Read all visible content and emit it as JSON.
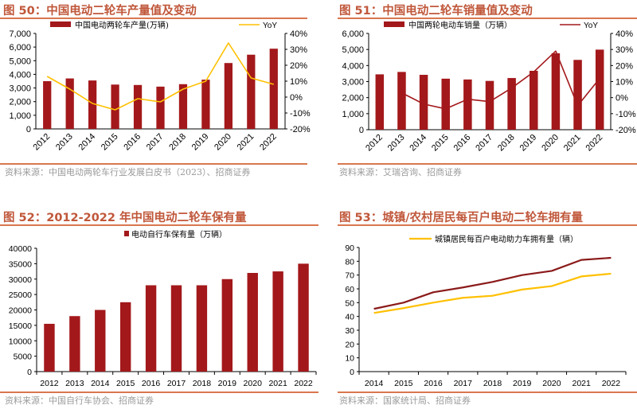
{
  "colors": {
    "bar": "#A3181B",
    "yoy_yellow": "#FFC000",
    "yoy_red": "#A3181B",
    "line_dark": "#8B1A1A",
    "line_yellow": "#FFC000",
    "title": "#C0573A"
  },
  "panels": [
    {
      "title": "图 50：中国电动二轮车产量值及变动",
      "source": "资料来源：中国电动两轮车行业发展白皮书（2023）、招商证券"
    },
    {
      "title": "图 51：中国电动二轮车销量值及变动",
      "source": "资料来源：艾瑞咨询、招商证券"
    },
    {
      "title": "图 52：2012-2022 年中国电动二轮车保有量",
      "source": "资料来源：中国自行车协会、招商证券"
    },
    {
      "title": "图 53：城镇/农村居民每百户电动二轮车拥有量",
      "source": "资料来源：国家统计局、招商证券"
    }
  ],
  "chart_data": [
    {
      "type": "bar+line",
      "categories": [
        "2012",
        "2013",
        "2014",
        "2015",
        "2016",
        "2017",
        "2018",
        "2019",
        "2020",
        "2021",
        "2022"
      ],
      "series": [
        {
          "name": "中国电动两轮车产量(万辆)",
          "type": "bar",
          "axis": "left",
          "values": [
            3500,
            3700,
            3550,
            3250,
            3220,
            3100,
            3280,
            3610,
            4830,
            5440,
            5880
          ]
        },
        {
          "name": "YoY",
          "type": "line",
          "axis": "right",
          "values": [
            13,
            5,
            -4,
            -8,
            -1,
            -3,
            5,
            10,
            34,
            12,
            8
          ]
        }
      ],
      "ylim": [
        0,
        7000
      ],
      "yticks": [
        "0",
        "1,000",
        "2,000",
        "3,000",
        "4,000",
        "5,000",
        "6,000",
        "7,000"
      ],
      "y2lim": [
        -20,
        40
      ],
      "y2ticks": [
        "-20%",
        "-10%",
        "0%",
        "10%",
        "20%",
        "30%",
        "40%"
      ],
      "legend": "top",
      "grid": false
    },
    {
      "type": "bar+line",
      "categories": [
        "2012",
        "2013",
        "2014",
        "2015",
        "2016",
        "2017",
        "2018",
        "2019",
        "2020",
        "2021",
        "2022"
      ],
      "series": [
        {
          "name": "中国两轮电动车销量（万辆）",
          "type": "bar",
          "axis": "left",
          "values": [
            3450,
            3600,
            3420,
            3180,
            3130,
            3040,
            3220,
            3670,
            4760,
            4350,
            4990
          ]
        },
        {
          "name": "YoY",
          "type": "line",
          "axis": "right",
          "values": [
            null,
            3,
            -4,
            -7,
            -1,
            -2.5,
            6,
            16,
            29,
            -5,
            12
          ]
        }
      ],
      "ylim": [
        0,
        6000
      ],
      "yticks": [
        "0",
        "1,000",
        "2,000",
        "3,000",
        "4,000",
        "5,000",
        "6,000"
      ],
      "y2lim": [
        -20,
        40
      ],
      "y2ticks": [
        "-20%",
        "-10%",
        "0%",
        "10%",
        "20%",
        "30%",
        "40%"
      ],
      "legend": "top",
      "grid": false
    },
    {
      "type": "bar",
      "categories": [
        "2012",
        "2013",
        "2014",
        "2015",
        "2016",
        "2017",
        "2018",
        "2019",
        "2020",
        "2021",
        "2022"
      ],
      "series": [
        {
          "name": "电动自行车保有量（万辆）",
          "type": "bar",
          "axis": "left",
          "values": [
            15500,
            18000,
            20000,
            22500,
            28000,
            28000,
            28000,
            30000,
            32000,
            32500,
            35000
          ]
        }
      ],
      "ylim": [
        0,
        40000
      ],
      "yticks": [
        "0",
        "5000",
        "10000",
        "15000",
        "20000",
        "25000",
        "30000",
        "35000",
        "40000"
      ],
      "legend": "top",
      "grid": false
    },
    {
      "type": "line",
      "categories": [
        "2014",
        "2015",
        "2016",
        "2017",
        "2018",
        "2019",
        "2020",
        "2021",
        "2022"
      ],
      "series": [
        {
          "type": "line",
          "color_key": "line_dark",
          "values": [
            45.5,
            50,
            57.5,
            61,
            65,
            70,
            73,
            81,
            82.5
          ]
        },
        {
          "name": "城镇居民每百户电动助力车拥有量（辆）",
          "type": "line",
          "color_key": "line_yellow",
          "values": [
            42.5,
            46,
            50,
            53.5,
            55,
            59.5,
            62,
            69,
            71
          ]
        }
      ],
      "ylim": [
        0,
        90
      ],
      "yticks": [
        "0",
        "10",
        "20",
        "30",
        "40",
        "50",
        "60",
        "70",
        "80",
        "90"
      ],
      "legend": "top",
      "grid": false
    }
  ]
}
